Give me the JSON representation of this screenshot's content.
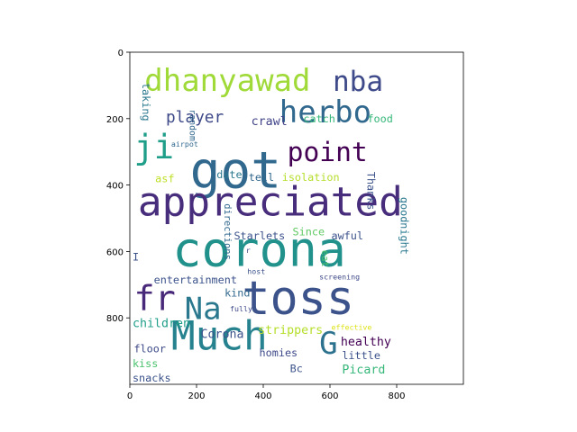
{
  "axes": {
    "x_ticks": [
      "0",
      "200",
      "400",
      "600",
      "800"
    ],
    "y_ticks": [
      "0",
      "200",
      "400",
      "600",
      "800"
    ],
    "xlim": [
      0,
      1000
    ],
    "ylim": [
      1000,
      0
    ]
  },
  "words": [
    {
      "text": "corona",
      "color": "#21918c"
    },
    {
      "text": "got",
      "color": "#31688e"
    },
    {
      "text": "toss",
      "color": "#3b528b"
    },
    {
      "text": "appreciated",
      "color": "#472d7b"
    },
    {
      "text": "Much",
      "color": "#26828e"
    },
    {
      "text": "herbo",
      "color": "#31688e"
    },
    {
      "text": "dhanyawad",
      "color": "#a0da39"
    },
    {
      "text": "nba",
      "color": "#3e4a89"
    },
    {
      "text": "point",
      "color": "#440154"
    },
    {
      "text": "ji",
      "color": "#1f9e89"
    },
    {
      "text": "fr",
      "color": "#482878"
    },
    {
      "text": "Na",
      "color": "#2a788e"
    },
    {
      "text": "G",
      "color": "#2c728e"
    },
    {
      "text": "player",
      "color": "#3e4a89"
    },
    {
      "text": "crawl",
      "color": "#414487"
    },
    {
      "text": "catch",
      "color": "#35b779"
    },
    {
      "text": "food",
      "color": "#35b779"
    },
    {
      "text": "taking",
      "color": "#2a788e"
    },
    {
      "text": "random",
      "color": "#31688e"
    },
    {
      "text": "airpot",
      "color": "#31688e"
    },
    {
      "text": "Thanks",
      "color": "#3b528b"
    },
    {
      "text": "asf",
      "color": "#bddf26"
    },
    {
      "text": "date",
      "color": "#2a788e"
    },
    {
      "text": "tell",
      "color": "#31688e"
    },
    {
      "text": "isolation",
      "color": "#b5de2b"
    },
    {
      "text": "Starlets",
      "color": "#3b528b"
    },
    {
      "text": "Since",
      "color": "#5ec962"
    },
    {
      "text": "awful",
      "color": "#3b528b"
    },
    {
      "text": "goodnight",
      "color": "#2a788e"
    },
    {
      "text": "I",
      "color": "#3b528b"
    },
    {
      "text": "r",
      "color": "#3e4a89"
    },
    {
      "text": "directions",
      "color": "#31688e"
    },
    {
      "text": "eat",
      "color": "#4ac16d"
    },
    {
      "text": "entertainment",
      "color": "#3b528b"
    },
    {
      "text": "host",
      "color": "#3b528b"
    },
    {
      "text": "screening",
      "color": "#3e4a89"
    },
    {
      "text": "kind",
      "color": "#31688e"
    },
    {
      "text": "fully",
      "color": "#3e4a89"
    },
    {
      "text": "children",
      "color": "#1f9e89"
    },
    {
      "text": "Corona",
      "color": "#3b528b"
    },
    {
      "text": "strippers",
      "color": "#b5de2b"
    },
    {
      "text": "effective",
      "color": "#dde318"
    },
    {
      "text": "healthy",
      "color": "#440154"
    },
    {
      "text": "floor",
      "color": "#3e4a89"
    },
    {
      "text": "homies",
      "color": "#3e4a89"
    },
    {
      "text": "little",
      "color": "#3b528b"
    },
    {
      "text": "kiss",
      "color": "#4ac16d"
    },
    {
      "text": "Bc",
      "color": "#3b528b"
    },
    {
      "text": "Picard",
      "color": "#35b779"
    },
    {
      "text": "snacks",
      "color": "#3b528b"
    }
  ]
}
